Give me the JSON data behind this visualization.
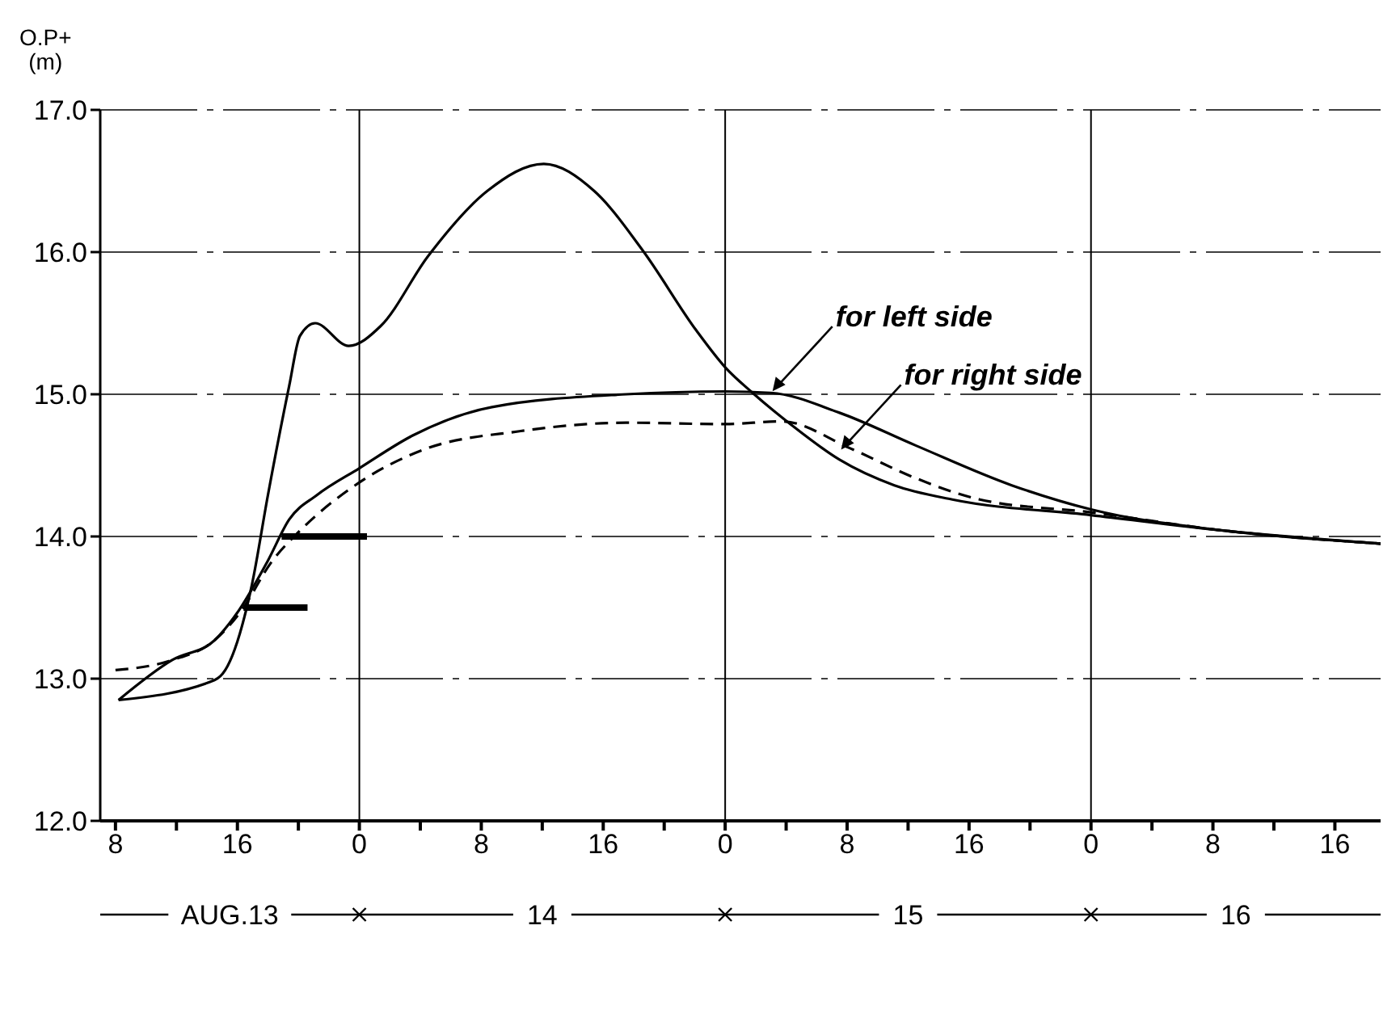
{
  "chart_data": {
    "type": "line",
    "ylabel": "O.P+ (m)",
    "xlim": [
      "--08-13T07:00",
      "--08-16T19:00"
    ],
    "ylim": [
      12,
      17
    ],
    "xticks": [
      {
        "value": "--08-13T08:00",
        "label": "8"
      },
      {
        "value": "--08-13T12:00",
        "label": null
      },
      {
        "value": "--08-13T16:00",
        "label": "16"
      },
      {
        "value": "--08-13T20:00",
        "label": null
      },
      {
        "value": "--08-14T00:00",
        "label": "0"
      },
      {
        "value": "--08-14T04:00",
        "label": null
      },
      {
        "value": "--08-14T08:00",
        "label": "8"
      },
      {
        "value": "--08-14T12:00",
        "label": null
      },
      {
        "value": "--08-14T16:00",
        "label": "16"
      },
      {
        "value": "--08-14T20:00",
        "label": null
      },
      {
        "value": "--08-15T00:00",
        "label": "0"
      },
      {
        "value": "--08-15T04:00",
        "label": null
      },
      {
        "value": "--08-15T08:00",
        "label": "8"
      },
      {
        "value": "--08-15T12:00",
        "label": null
      },
      {
        "value": "--08-15T16:00",
        "label": "16"
      },
      {
        "value": "--08-15T20:00",
        "label": null
      },
      {
        "value": "--08-16T00:00",
        "label": "0"
      },
      {
        "value": "--08-16T04:00",
        "label": null
      },
      {
        "value": "--08-16T08:00",
        "label": "8"
      },
      {
        "value": "--08-16T12:00",
        "label": null
      },
      {
        "value": "--08-16T16:00",
        "label": "16"
      }
    ],
    "yticks": [
      {
        "value": 12,
        "label": "12.0"
      },
      {
        "value": 13,
        "label": "13.0"
      },
      {
        "value": 14,
        "label": "14.0"
      },
      {
        "value": 15,
        "label": "15.0"
      },
      {
        "value": 16,
        "label": "16.0"
      },
      {
        "value": 17,
        "label": "17.0"
      }
    ],
    "grid": "y",
    "marker": "none",
    "ref_lines": [
      {
        "axis": "x",
        "value": "--08-14T00:00"
      },
      {
        "axis": "x",
        "value": "--08-15T00:00"
      },
      {
        "axis": "x",
        "value": "--08-16T00:00"
      }
    ],
    "series": [
      {
        "color": "#000000",
        "line_style": "solid",
        "x": [
          "--08-13T08:12",
          "--08-13T14:30",
          "--08-13T15:12",
          "--08-13T16:57",
          "--08-13T18:00",
          "--08-13T19:24",
          "--08-13T20:06",
          "--08-13T21:06",
          "--08-13T23:18",
          "--08-14T01:24",
          "--08-14T04:30",
          "--08-14T08:24",
          "--08-14T12:06",
          "--08-14T15:24",
          "--08-14T18:36",
          "--08-14T22:06",
          "--08-15T00:00",
          "--08-15T01:48",
          "--08-15T04:24",
          "--08-15T07:30",
          "--08-15T11:06",
          "--08-15T14:54",
          "--08-16T00:00",
          "--08-16T08:48",
          "--08-16T19:00"
        ],
        "values": [
          12.85,
          12.99,
          13.06,
          13.66,
          14.29,
          15.06,
          15.41,
          15.5,
          15.34,
          15.48,
          15.97,
          16.43,
          16.62,
          16.43,
          16.01,
          15.45,
          15.19,
          15.01,
          14.78,
          14.54,
          14.36,
          14.26,
          14.15,
          14.04,
          13.95
        ]
      },
      {
        "color": "#000000",
        "line_style": "solid",
        "x": [
          "--08-13T08:12",
          "--08-13T11:42",
          "--08-13T14:30",
          "--08-13T15:54",
          "--08-13T18:00",
          "--08-13T19:24",
          "--08-13T21:12",
          "--08-14T00:00",
          "--08-14T03:30",
          "--08-14T08:42",
          "--08-14T17:30",
          "--08-15T00:00",
          "--08-15T03:00",
          "--08-15T07:30",
          "--08-15T12:30",
          "--08-15T18:48",
          "--08-16T00:00",
          "--08-16T08:48",
          "--08-16T19:00"
        ],
        "values": [
          12.85,
          13.13,
          13.27,
          13.45,
          13.83,
          14.12,
          14.29,
          14.48,
          14.71,
          14.91,
          15.0,
          15.02,
          15.01,
          14.87,
          14.64,
          14.36,
          14.19,
          14.04,
          13.95
        ]
      },
      {
        "color": "#000000",
        "line_style": "dashed",
        "x": [
          "--08-13T08:00",
          "--08-13T11:42",
          "--08-13T14:30",
          "--08-13T16:12",
          "--08-13T18:18",
          "--08-13T20:06",
          "--08-14T00:00",
          "--08-14T04:12",
          "--08-14T10:30",
          "--08-14T17:30",
          "--08-15T00:00",
          "--08-15T03:42",
          "--08-15T08:12",
          "--08-15T12:30",
          "--08-15T16:42",
          "--08-16T00:00",
          "--08-16T08:48",
          "--08-16T19:00"
        ],
        "values": [
          13.06,
          13.13,
          13.27,
          13.47,
          13.83,
          14.04,
          14.38,
          14.61,
          14.74,
          14.8,
          14.79,
          14.81,
          14.62,
          14.41,
          14.26,
          14.17,
          14.04,
          13.95
        ]
      },
      {
        "type": "step",
        "color": "#000000",
        "line_style": "solid",
        "x": [
          "--08-13T18:54",
          "--08-14T00:30"
        ],
        "values": [
          14.0,
          14.0
        ]
      },
      {
        "type": "step",
        "color": "#000000",
        "line_style": "solid",
        "x": [
          "--08-13T16:24",
          "--08-13T20:36"
        ],
        "values": [
          13.5,
          13.5
        ]
      }
    ],
    "annotations": [
      {
        "text": "for left side",
        "x": "--08-15T03:00",
        "y": 15.01
      },
      {
        "text": "for right side",
        "x": "--08-15T07:30",
        "y": 14.6
      },
      "AUG.13",
      "14",
      "15",
      "16"
    ]
  }
}
